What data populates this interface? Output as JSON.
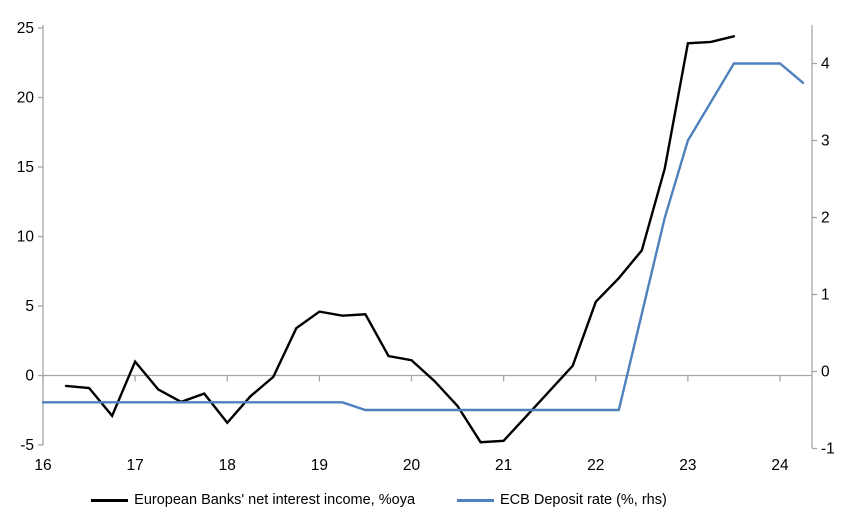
{
  "chart_data": {
    "type": "line",
    "title": "",
    "grid": "zero-line-only",
    "legend_position": "bottom",
    "colors": {
      "axis": "#A6A6A6",
      "text": "#000000",
      "background": "#FFFFFF"
    },
    "x_axis": {
      "tick_labels": [
        "16",
        "17",
        "18",
        "19",
        "20",
        "21",
        "22",
        "23",
        "24"
      ],
      "tick_values": [
        16,
        17,
        18,
        19,
        20,
        21,
        22,
        23,
        24
      ],
      "range": [
        16,
        24.35
      ]
    },
    "left_axis": {
      "tick_labels": [
        "-5",
        "0",
        "5",
        "10",
        "15",
        "20",
        "25"
      ],
      "tick_values": [
        -5,
        0,
        5,
        10,
        15,
        20,
        25
      ],
      "range": [
        -5,
        25
      ]
    },
    "right_axis": {
      "tick_labels": [
        "-1",
        "0",
        "1",
        "2",
        "3",
        "4"
      ],
      "tick_values": [
        -1,
        0,
        1,
        2,
        3,
        4
      ],
      "range": [
        -1.05,
        4.5
      ]
    },
    "series": [
      {
        "name": "European Banks' net interest income, %oya",
        "axis": "left",
        "color": "#000000",
        "x": [
          16.25,
          16.5,
          16.75,
          17.0,
          17.25,
          17.5,
          17.75,
          18.0,
          18.25,
          18.5,
          18.75,
          19.0,
          19.25,
          19.5,
          19.75,
          20.0,
          20.25,
          20.5,
          20.75,
          21.0,
          21.25,
          21.5,
          21.75,
          22.0,
          22.25,
          22.5,
          22.75,
          23.0,
          23.25,
          23.5
        ],
        "values": [
          -0.75,
          -0.9,
          -2.9,
          1.0,
          -1.0,
          -1.9,
          -1.3,
          -3.4,
          -1.5,
          -0.1,
          3.4,
          4.6,
          4.3,
          4.4,
          1.4,
          1.1,
          -0.4,
          -2.2,
          -4.8,
          -4.7,
          -2.9,
          -1.1,
          0.7,
          5.3,
          7.0,
          9.0,
          14.9,
          23.9,
          24.0,
          24.4
        ]
      },
      {
        "name": "ECB Deposit rate (%, rhs)",
        "axis": "right",
        "color": "#4E81BD",
        "x": [
          16.0,
          16.25,
          16.5,
          16.75,
          17.0,
          17.25,
          17.5,
          17.75,
          18.0,
          18.25,
          18.5,
          18.75,
          19.0,
          19.25,
          19.5,
          19.75,
          20.0,
          20.25,
          20.5,
          20.75,
          21.0,
          21.25,
          21.5,
          21.75,
          22.0,
          22.25,
          22.5,
          22.75,
          23.0,
          23.25,
          23.5,
          23.75,
          24.0,
          24.25
        ],
        "values": [
          -0.4,
          -0.4,
          -0.4,
          -0.4,
          -0.4,
          -0.4,
          -0.4,
          -0.4,
          -0.4,
          -0.4,
          -0.4,
          -0.4,
          -0.4,
          -0.4,
          -0.5,
          -0.5,
          -0.5,
          -0.5,
          -0.5,
          -0.5,
          -0.5,
          -0.5,
          -0.5,
          -0.5,
          -0.5,
          -0.5,
          0.75,
          2.0,
          3.0,
          3.5,
          4.0,
          4.0,
          4.0,
          3.75
        ]
      }
    ]
  }
}
